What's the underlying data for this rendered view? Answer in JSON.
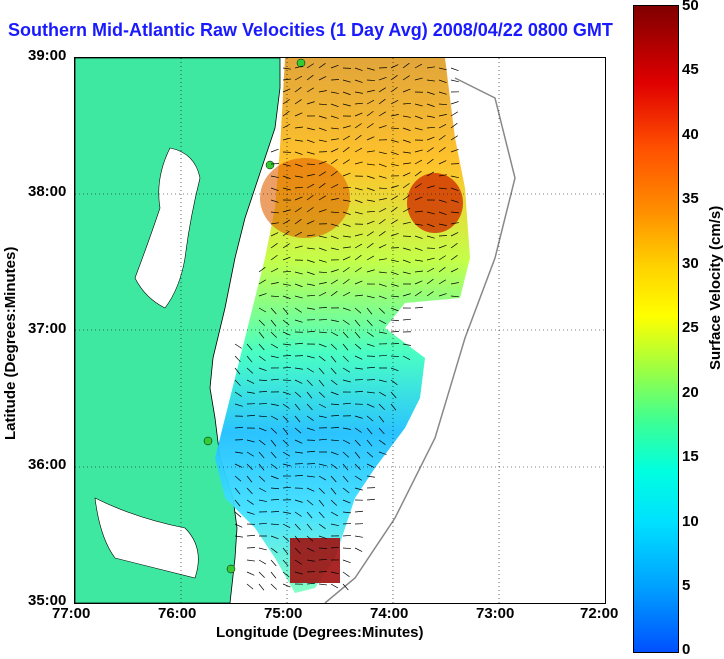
{
  "title": "Southern Mid-Atlantic Raw Velocities (1 Day Avg) 2008/04/22 0800 GMT",
  "xlabel": "Longitude (Degrees:Minutes)",
  "ylabel": "Latitude (Degrees:Minutes)",
  "colorbar_label": "Surface Velocity (cm/s)",
  "xticks": [
    "77:00",
    "76:00",
    "75:00",
    "74:00",
    "73:00",
    "72:00"
  ],
  "yticks": [
    "39:00",
    "38:00",
    "37:00",
    "36:00",
    "35:00"
  ],
  "colorbar_ticks": [
    "50",
    "45",
    "40",
    "35",
    "30",
    "25",
    "20",
    "15",
    "10",
    "5",
    "0"
  ],
  "colors": {
    "title": "#1a1aff",
    "land": "#3fe8a0",
    "station": "#33cc33"
  },
  "chart_data": {
    "type": "heatmap",
    "title": "Southern Mid-Atlantic Raw Velocities (1 Day Avg) 2008/04/22 0800 GMT",
    "xlabel": "Longitude (Degrees:Minutes)",
    "ylabel": "Latitude (Degrees:Minutes)",
    "xlim": [
      "77:00",
      "72:00"
    ],
    "ylim": [
      "35:00",
      "39:00"
    ],
    "colorbar": {
      "label": "Surface Velocity (cm/s)",
      "range": [
        0,
        50
      ]
    }
  }
}
